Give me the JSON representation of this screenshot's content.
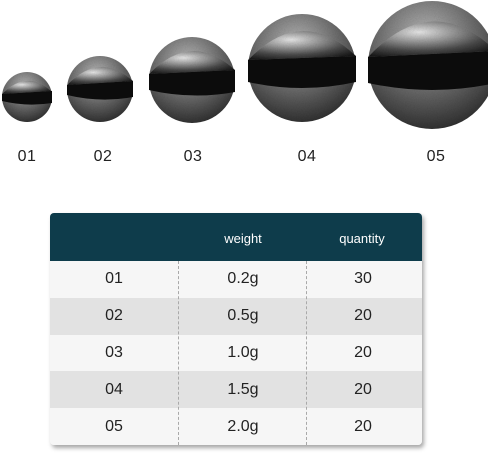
{
  "sinkers": [
    {
      "label": "01"
    },
    {
      "label": "02"
    },
    {
      "label": "03"
    },
    {
      "label": "04"
    },
    {
      "label": "05"
    }
  ],
  "table": {
    "header": {
      "col1": "",
      "col2": "weight",
      "col3": "quantity"
    },
    "rows": [
      {
        "id": "01",
        "weight": "0.2g",
        "quantity": "30"
      },
      {
        "id": "02",
        "weight": "0.5g",
        "quantity": "20"
      },
      {
        "id": "03",
        "weight": "1.0g",
        "quantity": "20"
      },
      {
        "id": "04",
        "weight": "1.5g",
        "quantity": "20"
      },
      {
        "id": "05",
        "weight": "2.0g",
        "quantity": "20"
      }
    ],
    "header_color": "#0e3c4b"
  }
}
